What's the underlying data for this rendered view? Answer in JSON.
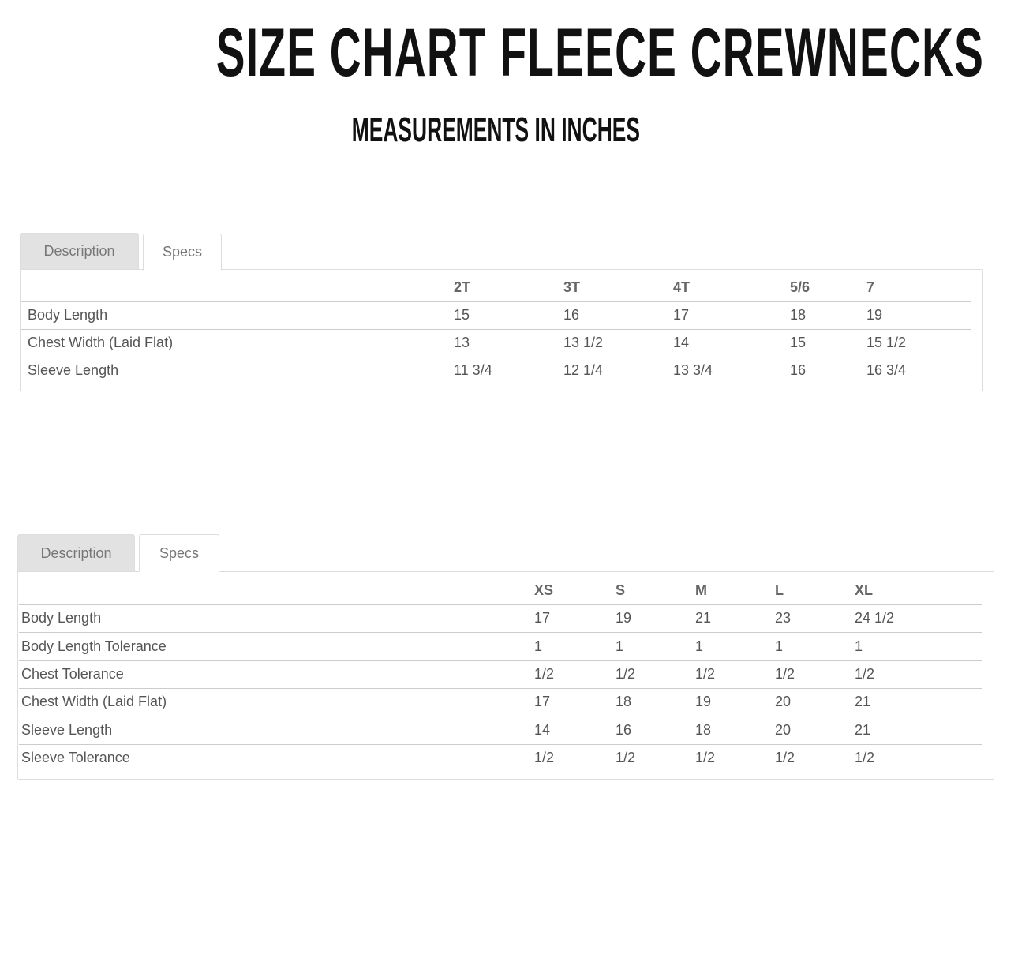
{
  "header": {
    "title": "SIZE CHART FLEECE CREWNECKS",
    "subtitle": "MEASUREMENTS IN INCHES"
  },
  "tables": [
    {
      "tabs": [
        "Description",
        "Specs"
      ],
      "active_tab": "Specs",
      "columns": [
        "",
        "2T",
        "3T",
        "4T",
        "5/6",
        "7"
      ],
      "rows": [
        [
          "Body Length",
          "15",
          "16",
          "17",
          "18",
          "19"
        ],
        [
          "Chest Width (Laid Flat)",
          "13",
          "13 1/2",
          "14",
          "15",
          "15 1/2"
        ],
        [
          "Sleeve Length",
          "11 3/4",
          "12 1/4",
          "13 3/4",
          "16",
          "16 3/4"
        ]
      ]
    },
    {
      "tabs": [
        "Description",
        "Specs"
      ],
      "active_tab": "Specs",
      "columns": [
        "",
        "XS",
        "S",
        "M",
        "L",
        "XL"
      ],
      "rows": [
        [
          "Body Length",
          "17",
          "19",
          "21",
          "23",
          "24 1/2"
        ],
        [
          "Body Length Tolerance",
          "1",
          "1",
          "1",
          "1",
          "1"
        ],
        [
          "Chest Tolerance",
          "1/2",
          "1/2",
          "1/2",
          "1/2",
          "1/2"
        ],
        [
          "Chest Width (Laid Flat)",
          "17",
          "18",
          "19",
          "20",
          "21"
        ],
        [
          "Sleeve Length",
          "14",
          "16",
          "18",
          "20",
          "21"
        ],
        [
          "Sleeve Tolerance",
          "1/2",
          "1/2",
          "1/2",
          "1/2",
          "1/2"
        ]
      ]
    }
  ]
}
